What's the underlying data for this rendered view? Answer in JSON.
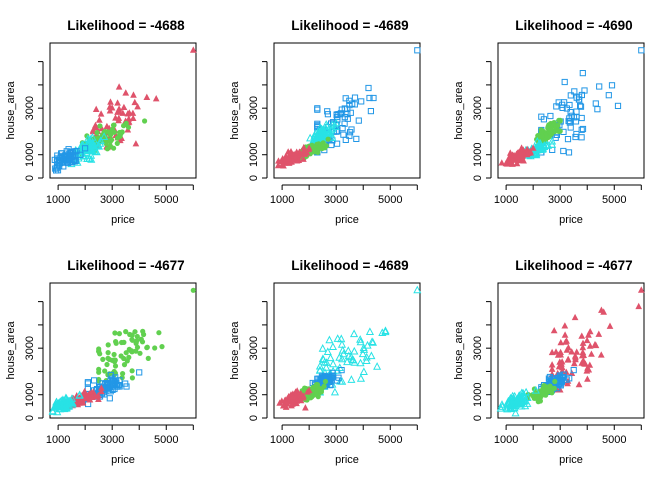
{
  "chart_data": [
    {
      "type": "scatter",
      "title": "Likelihood = -4688",
      "xlabel": "price",
      "ylabel": "house_area",
      "xlim": [
        700,
        6100
      ],
      "ylim": [
        0,
        5800
      ],
      "xticks": [
        "1000",
        "3000",
        "5000"
      ],
      "yticks": [
        "0",
        "1000",
        "3000"
      ],
      "clusters": [
        {
          "color": "#DF536B",
          "marker": "triangle-filled",
          "x_range": [
            2300,
            6000
          ],
          "y_range": [
            1300,
            5600
          ],
          "center": [
            2900,
            2200
          ]
        },
        {
          "color": "#61D04F",
          "marker": "circle-filled",
          "x_range": [
            1900,
            4200
          ],
          "y_range": [
            1000,
            2500
          ],
          "center": [
            2800,
            1750
          ]
        },
        {
          "color": "#28E2E5",
          "marker": "triangle-open",
          "x_range": [
            1400,
            2700
          ],
          "y_range": [
            600,
            1800
          ],
          "center": [
            2000,
            1200
          ]
        },
        {
          "color": "#2297E6",
          "marker": "square-open",
          "x_range": [
            800,
            2000
          ],
          "y_range": [
            200,
            1300
          ],
          "center": [
            1300,
            800
          ]
        }
      ]
    },
    {
      "type": "scatter",
      "title": "Likelihood = -4689",
      "xlabel": "price",
      "ylabel": "house_area",
      "xlim": [
        700,
        6100
      ],
      "ylim": [
        0,
        5800
      ],
      "xticks": [
        "1000",
        "3000",
        "5000"
      ],
      "yticks": [
        "0",
        "1000",
        "3000"
      ],
      "clusters": [
        {
          "color": "#2297E6",
          "marker": "square-open",
          "x_range": [
            2300,
            6000
          ],
          "y_range": [
            1100,
            5600
          ],
          "center": [
            3000,
            2300
          ]
        },
        {
          "color": "#28E2E5",
          "marker": "triangle-open",
          "x_range": [
            2000,
            3000
          ],
          "y_range": [
            1300,
            2400
          ],
          "center": [
            2500,
            1800
          ]
        },
        {
          "color": "#61D04F",
          "marker": "circle-filled",
          "x_range": [
            1600,
            2700
          ],
          "y_range": [
            800,
            1700
          ],
          "center": [
            2100,
            1200
          ]
        },
        {
          "color": "#DF536B",
          "marker": "triangle-filled",
          "x_range": [
            800,
            2000
          ],
          "y_range": [
            400,
            1300
          ],
          "center": [
            1400,
            900
          ]
        }
      ]
    },
    {
      "type": "scatter",
      "title": "Likelihood = -4690",
      "xlabel": "price",
      "ylabel": "house_area",
      "xlim": [
        700,
        6100
      ],
      "ylim": [
        0,
        5800
      ],
      "xticks": [
        "1000",
        "3000",
        "5000"
      ],
      "yticks": [
        "0",
        "1000",
        "3000"
      ],
      "clusters": [
        {
          "color": "#2297E6",
          "marker": "square-open",
          "x_range": [
            2300,
            6000
          ],
          "y_range": [
            1100,
            5600
          ],
          "center": [
            3000,
            2300
          ]
        },
        {
          "color": "#61D04F",
          "marker": "circle-filled",
          "x_range": [
            2000,
            3000
          ],
          "y_range": [
            1300,
            2500
          ],
          "center": [
            2500,
            1900
          ]
        },
        {
          "color": "#28E2E5",
          "marker": "triangle-open",
          "x_range": [
            1600,
            2700
          ],
          "y_range": [
            800,
            1600
          ],
          "center": [
            2100,
            1200
          ]
        },
        {
          "color": "#DF536B",
          "marker": "triangle-filled",
          "x_range": [
            800,
            2000
          ],
          "y_range": [
            400,
            1300
          ],
          "center": [
            1400,
            900
          ]
        }
      ]
    },
    {
      "type": "scatter",
      "title": "Likelihood = -4677",
      "xlabel": "price",
      "ylabel": "house_area",
      "xlim": [
        700,
        6100
      ],
      "ylim": [
        0,
        5800
      ],
      "xticks": [
        "1000",
        "3000",
        "5000"
      ],
      "yticks": [
        "0",
        "1000",
        "3000"
      ],
      "clusters": [
        {
          "color": "#61D04F",
          "marker": "circle-filled",
          "x_range": [
            2500,
            6000
          ],
          "y_range": [
            1600,
            5600
          ],
          "center": [
            3300,
            2600
          ]
        },
        {
          "color": "#2297E6",
          "marker": "square-open",
          "x_range": [
            2100,
            4000
          ],
          "y_range": [
            600,
            2000
          ],
          "center": [
            2800,
            1300
          ]
        },
        {
          "color": "#DF536B",
          "marker": "triangle-filled",
          "x_range": [
            1400,
            2600
          ],
          "y_range": [
            400,
            1300
          ],
          "center": [
            1900,
            850
          ]
        },
        {
          "color": "#28E2E5",
          "marker": "triangle-open",
          "x_range": [
            800,
            1800
          ],
          "y_range": [
            200,
            1000
          ],
          "center": [
            1200,
            600
          ]
        }
      ]
    },
    {
      "type": "scatter",
      "title": "Likelihood = -4689",
      "xlabel": "price",
      "ylabel": "house_area",
      "xlim": [
        700,
        6100
      ],
      "ylim": [
        0,
        5800
      ],
      "xticks": [
        "1000",
        "3000",
        "5000"
      ],
      "yticks": [
        "0",
        "1000",
        "3000"
      ],
      "clusters": [
        {
          "color": "#28E2E5",
          "marker": "triangle-open",
          "x_range": [
            2400,
            6000
          ],
          "y_range": [
            1100,
            5600
          ],
          "center": [
            3200,
            2400
          ]
        },
        {
          "color": "#2297E6",
          "marker": "square-open",
          "x_range": [
            2100,
            3200
          ],
          "y_range": [
            1100,
            2100
          ],
          "center": [
            2600,
            1600
          ]
        },
        {
          "color": "#61D04F",
          "marker": "circle-filled",
          "x_range": [
            1600,
            2600
          ],
          "y_range": [
            700,
            1600
          ],
          "center": [
            2100,
            1100
          ]
        },
        {
          "color": "#DF536B",
          "marker": "triangle-filled",
          "x_range": [
            800,
            2000
          ],
          "y_range": [
            300,
            1200
          ],
          "center": [
            1400,
            800
          ]
        }
      ]
    },
    {
      "type": "scatter",
      "title": "Likelihood = -4677",
      "xlabel": "price",
      "ylabel": "house_area",
      "xlim": [
        700,
        6100
      ],
      "ylim": [
        0,
        5800
      ],
      "xticks": [
        "1000",
        "3000",
        "5000"
      ],
      "yticks": [
        "0",
        "1000",
        "3000"
      ],
      "clusters": [
        {
          "color": "#DF536B",
          "marker": "triangle-filled",
          "x_range": [
            2700,
            6000
          ],
          "y_range": [
            1200,
            5600
          ],
          "center": [
            3400,
            2600
          ]
        },
        {
          "color": "#2297E6",
          "marker": "square-open",
          "x_range": [
            2300,
            3500
          ],
          "y_range": [
            1000,
            2100
          ],
          "center": [
            2800,
            1500
          ]
        },
        {
          "color": "#61D04F",
          "marker": "circle-filled",
          "x_range": [
            1800,
            2800
          ],
          "y_range": [
            700,
            1600
          ],
          "center": [
            2300,
            1100
          ]
        },
        {
          "color": "#28E2E5",
          "marker": "triangle-open",
          "x_range": [
            800,
            2100
          ],
          "y_range": [
            200,
            1200
          ],
          "center": [
            1400,
            700
          ]
        }
      ]
    }
  ]
}
